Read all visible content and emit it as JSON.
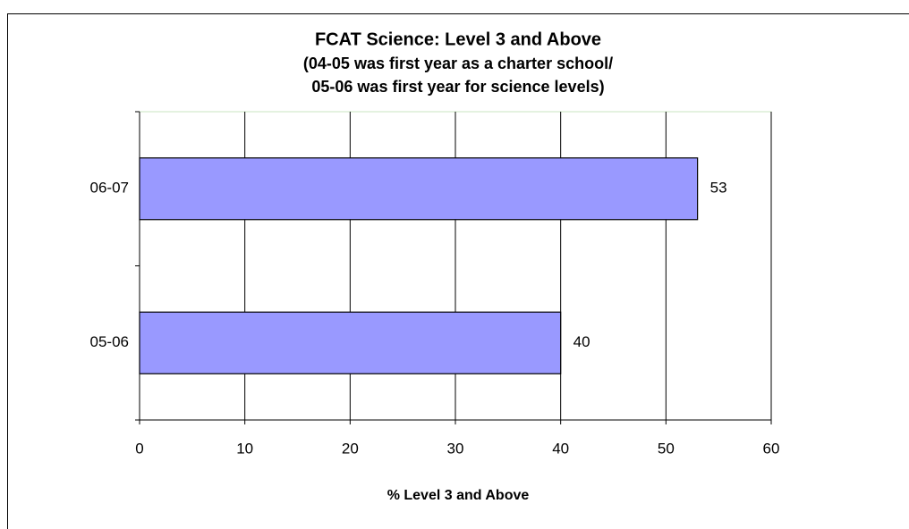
{
  "chart_data": {
    "type": "bar",
    "orientation": "horizontal",
    "title": "FCAT Science: Level 3 and Above",
    "subtitle": [
      "(04-05 was first year as a charter school/",
      "05-06 was first year for science levels)"
    ],
    "x_label": "% Level 3 and Above",
    "categories": [
      "06-07",
      "05-06"
    ],
    "values": [
      53,
      40
    ],
    "color": "#9999ff",
    "xlim": [
      0,
      60
    ],
    "xticks": [
      0,
      10,
      20,
      30,
      40,
      50,
      60
    ],
    "grid": true
  }
}
